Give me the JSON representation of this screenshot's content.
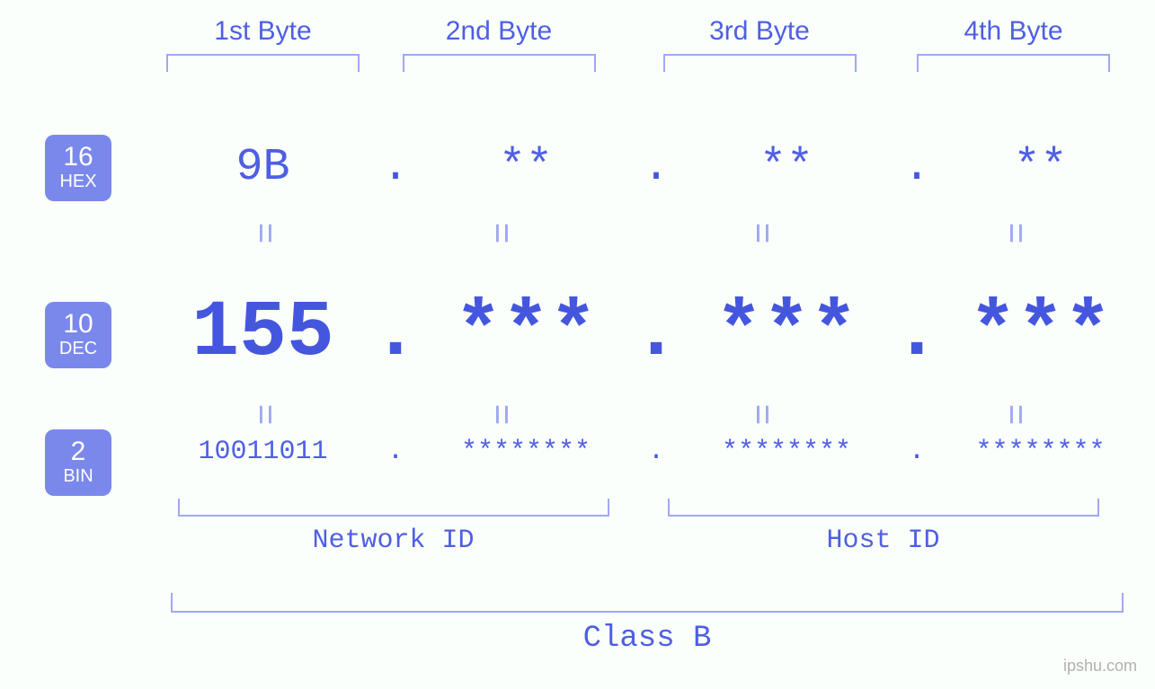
{
  "diagram": {
    "type": "infographic",
    "background_color": "#fbfffb",
    "primary_color": "#4e5fe3",
    "accent_color": "#4556de",
    "bracket_color": "#9ea9f0",
    "badge_bg_color": "#7b88eb",
    "badge_text_color": "#ffffff",
    "byte_headers": [
      "1st Byte",
      "2nd Byte",
      "3rd Byte",
      "4th Byte"
    ],
    "header_fontsize": 30,
    "bases": [
      {
        "number": "16",
        "label": "HEX"
      },
      {
        "number": "10",
        "label": "DEC"
      },
      {
        "number": "2",
        "label": "BIN"
      }
    ],
    "hex": {
      "values": [
        "9B",
        "**",
        "**",
        "**"
      ],
      "fontsize": 50
    },
    "dec": {
      "values": [
        "155",
        "***",
        "***",
        "***"
      ],
      "fontsize": 88
    },
    "bin": {
      "values": [
        "10011011",
        "********",
        "********",
        "********"
      ],
      "fontsize": 30
    },
    "equals_symbol": "=",
    "dot": ".",
    "id_labels": {
      "network": "Network ID",
      "host": "Host ID",
      "fontsize": 30
    },
    "class_label": "Class B",
    "class_fontsize": 34,
    "watermark": "ipshu.com",
    "watermark_color": "#b0b0b0"
  }
}
